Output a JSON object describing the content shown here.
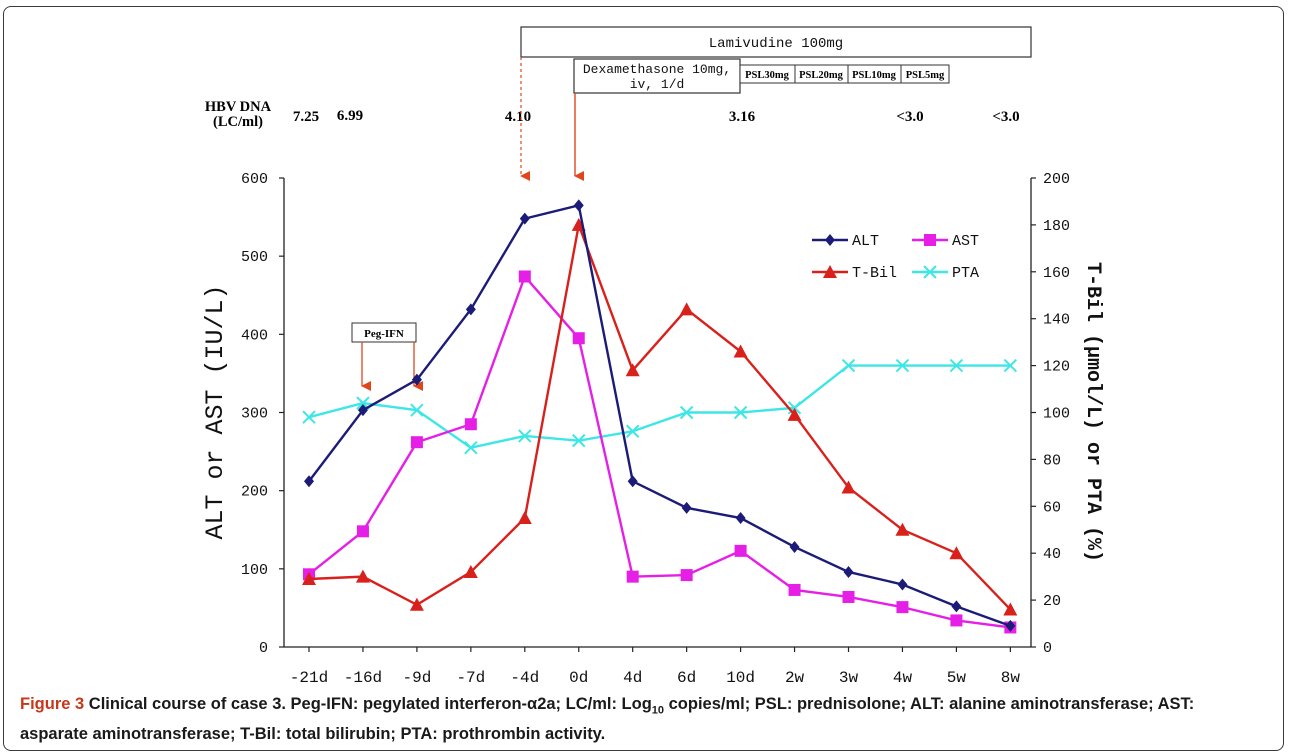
{
  "chart_data": {
    "type": "line",
    "categories": [
      "-21d",
      "-16d",
      "-9d",
      "-7d",
      "-4d",
      "0d",
      "4d",
      "6d",
      "10d",
      "2w",
      "3w",
      "4w",
      "5w",
      "8w"
    ],
    "y_left": {
      "label": "ALT or AST (IU/L)",
      "ylim": [
        0,
        600
      ],
      "ticks": [
        "0",
        "100",
        "200",
        "300",
        "400",
        "500",
        "600"
      ]
    },
    "y_right": {
      "label": "T-Bil (μmol/L) or PTA (%)",
      "ylim": [
        0,
        200
      ],
      "ticks": [
        "0",
        "20",
        "40",
        "60",
        "80",
        "100",
        "120",
        "140",
        "160",
        "180",
        "200"
      ]
    },
    "series": [
      {
        "name": "ALT",
        "axis": "left",
        "color": "#1c1c78",
        "marker": "diamond",
        "values": [
          212,
          303,
          342,
          432,
          548,
          565,
          212,
          178,
          165,
          128,
          96,
          80,
          52,
          27
        ]
      },
      {
        "name": "AST",
        "axis": "left",
        "color": "#e61fe6",
        "marker": "square",
        "values": [
          93,
          148,
          262,
          285,
          474,
          395,
          90,
          92,
          123,
          73,
          64,
          51,
          34,
          25
        ]
      },
      {
        "name": "T-Bil",
        "axis": "right",
        "color": "#d9211c",
        "marker": "triangle",
        "values": [
          29,
          30,
          18,
          32,
          55,
          180,
          118,
          144,
          126,
          99,
          68,
          50,
          40,
          16
        ]
      },
      {
        "name": "PTA",
        "axis": "right",
        "color": "#3fe6e6",
        "marker": "x",
        "values": [
          98,
          104,
          101,
          85,
          90,
          88,
          92,
          100,
          100,
          102,
          120,
          120,
          120,
          120
        ]
      }
    ],
    "legend": {
      "position": "top-right",
      "entries": [
        "ALT",
        "AST",
        "T-Bil",
        "PTA"
      ]
    },
    "grid": false
  },
  "hbv": {
    "label_line1": "HBV DNA",
    "label_line2": "(LC/ml)",
    "values": [
      "7.25",
      "6.99",
      "4.10",
      "3.16",
      "<3.0",
      "<3.0"
    ]
  },
  "treatments": {
    "lamivudine": "Lamivudine 100mg",
    "dexamethasone_line1": "Dexamethasone 10mg,",
    "dexamethasone_line2": "iv, 1/d",
    "psl": [
      "PSL30mg",
      "PSL20mg",
      "PSL10mg",
      "PSL5mg"
    ],
    "peg_ifn": "Peg-IFN"
  },
  "caption": {
    "label": "Figure 3",
    "text": "Clinical course of case 3. Peg-IFN: pegylated interferon-α2a; LC/ml: Log",
    "subscript": "10",
    "text_after": " copies/ml; PSL: prednisolone; ALT: alanine aminotransferase; AST: asparate aminotransferase; T-Bil: total bilirubin; PTA: prothrombin activity."
  }
}
